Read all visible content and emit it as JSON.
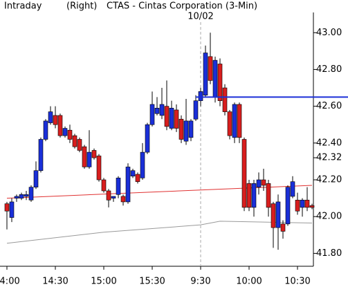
{
  "chart_data": {
    "type": "candlestick",
    "title": "CTAS - Cintas Corporation (3-Min)",
    "subtitle": "Intraday",
    "axis_label": "(Right)",
    "up_color": "#1a2fd8",
    "down_color": "#d81e1e",
    "categories": [
      "14:00",
      null,
      null,
      null,
      null,
      null,
      null,
      null,
      null,
      null,
      "14:30",
      null,
      null,
      null,
      null,
      null,
      null,
      null,
      null,
      null,
      "15:00",
      null,
      null,
      null,
      null,
      null,
      null,
      null,
      null,
      null,
      "15:30",
      null,
      null,
      null,
      null,
      null,
      null,
      null,
      null,
      null,
      "9:30",
      null,
      null,
      null,
      null,
      null,
      null,
      null,
      null,
      null,
      "10:00",
      null,
      null,
      null,
      null,
      null,
      null,
      null,
      null,
      null,
      "10:30",
      null,
      null,
      null
    ],
    "open": [
      42.07,
      41.995,
      42.1,
      42.1,
      42.11,
      42.09,
      42.16,
      42.25,
      42.42,
      42.51,
      42.55,
      42.55,
      42.44,
      42.47,
      42.44,
      42.42,
      42.38,
      42.27,
      42.36,
      42.33,
      42.2,
      42.14,
      42.1,
      42.12,
      42.11,
      42.08,
      42.22,
      42.23,
      42.21,
      42.35,
      42.5,
      42.56,
      42.55,
      42.6,
      42.48,
      42.58,
      42.53,
      42.41,
      42.43,
      42.53,
      42.63,
      42.66,
      42.87,
      42.65,
      42.83,
      42.7,
      42.57,
      42.43,
      42.61,
      42.42,
      42.18,
      42.05,
      42.16,
      42.2,
      42.18,
      42.07,
      41.94,
      41.96,
      41.96,
      42.11,
      42.09,
      42.05,
      42.09,
      42.06
    ],
    "high": [
      42.08,
      42.1,
      42.12,
      42.13,
      42.14,
      42.17,
      42.3,
      42.43,
      42.53,
      42.6,
      42.6,
      42.56,
      42.49,
      42.5,
      42.45,
      42.43,
      42.39,
      42.47,
      42.37,
      42.34,
      42.21,
      42.15,
      42.11,
      42.22,
      42.12,
      42.29,
      42.26,
      42.24,
      42.4,
      42.51,
      42.68,
      42.65,
      42.7,
      42.74,
      42.63,
      42.61,
      42.55,
      42.64,
      42.53,
      42.66,
      42.7,
      42.93,
      43.0,
      42.87,
      42.86,
      42.72,
      42.58,
      42.62,
      42.62,
      42.43,
      42.2,
      42.2,
      42.24,
      42.26,
      42.2,
      42.08,
      42.12,
      41.98,
      42.17,
      42.22,
      42.13,
      42.1,
      42.16,
      42.07
    ],
    "low": [
      41.93,
      41.97,
      42.08,
      42.09,
      42.09,
      42.08,
      42.15,
      42.24,
      42.41,
      42.5,
      42.48,
      42.43,
      42.43,
      42.4,
      42.37,
      42.35,
      42.26,
      42.26,
      42.31,
      42.19,
      42.13,
      42.05,
      42.08,
      42.1,
      42.06,
      42.07,
      42.21,
      42.18,
      42.2,
      42.34,
      42.49,
      42.55,
      42.53,
      42.47,
      42.47,
      42.46,
      42.4,
      42.39,
      42.41,
      42.52,
      42.6,
      42.65,
      42.72,
      42.62,
      42.6,
      42.55,
      42.42,
      42.4,
      42.4,
      42.03,
      42.03,
      42.0,
      42.12,
      42.14,
      42.0,
      41.83,
      41.82,
      41.88,
      41.95,
      42.1,
      42.01,
      42.0,
      42.03,
      42.04
    ],
    "close": [
      42.03,
      42.08,
      42.11,
      42.12,
      42.12,
      42.16,
      42.25,
      42.42,
      42.52,
      42.57,
      42.5,
      42.44,
      42.48,
      42.42,
      42.38,
      42.36,
      42.27,
      42.35,
      42.32,
      42.2,
      42.14,
      42.09,
      42.11,
      42.21,
      42.08,
      42.27,
      42.25,
      42.19,
      42.35,
      42.5,
      42.61,
      42.59,
      42.61,
      42.49,
      42.59,
      42.48,
      42.42,
      42.52,
      42.52,
      42.63,
      42.68,
      42.89,
      42.74,
      42.85,
      42.63,
      42.57,
      42.44,
      42.61,
      42.43,
      42.05,
      42.05,
      42.18,
      42.2,
      42.17,
      42.05,
      41.94,
      42.08,
      41.92,
      42.16,
      42.19,
      42.03,
      42.09,
      42.05,
      42.05
    ],
    "lines": [
      {
        "color": "#e03030",
        "x": [
          0,
          63
        ],
        "values": [
          42.1,
          42.17
        ]
      },
      {
        "color": "#999999",
        "x": [
          0,
          20,
          40,
          44,
          63
        ],
        "values": [
          41.855,
          41.915,
          41.955,
          41.975,
          41.965
        ]
      }
    ],
    "hline": {
      "value": 42.65,
      "color": "#1a2fd8"
    },
    "annotations": [
      {
        "text": "10/02",
        "x": 40
      }
    ],
    "ylim": [
      41.73,
      43.11
    ],
    "yticks": [
      {
        "value": 41.8,
        "label": "41.80"
      },
      {
        "value": 42,
        "label": "42.00"
      },
      {
        "value": 42.2,
        "label": "42.20"
      },
      {
        "value": 42.32,
        "label": "42.32"
      },
      {
        "value": 42.4,
        "label": "42.40"
      },
      {
        "value": 42.6,
        "label": "42.60"
      },
      {
        "value": 42.8,
        "label": "42.80"
      },
      {
        "value": 43,
        "label": "43.00"
      }
    ]
  }
}
